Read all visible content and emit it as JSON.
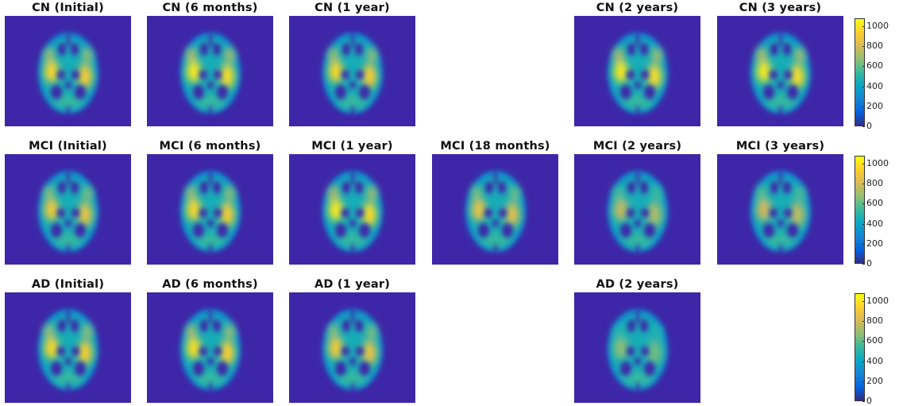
{
  "rows": [
    {
      "group": "CN",
      "panels": [
        {
          "title": "CN (Initial)",
          "intensity": 0.9
        },
        {
          "title": "CN (6 months)",
          "intensity": 0.95
        },
        {
          "title": "CN (1 year)",
          "intensity": 0.9
        },
        {
          "title": "",
          "empty": true
        },
        {
          "title": "CN (2 years)",
          "intensity": 0.95
        },
        {
          "title": "CN (3 years)",
          "intensity": 0.95
        }
      ]
    },
    {
      "group": "MCI",
      "panels": [
        {
          "title": "MCI (Initial)",
          "intensity": 0.85
        },
        {
          "title": "MCI (6 months)",
          "intensity": 0.9
        },
        {
          "title": "MCI (1 year)",
          "intensity": 0.95
        },
        {
          "title": "MCI (18 months)",
          "intensity": 0.82
        },
        {
          "title": "MCI (2 years)",
          "intensity": 0.72
        },
        {
          "title": "MCI (3 years)",
          "intensity": 0.75
        }
      ]
    },
    {
      "group": "AD",
      "panels": [
        {
          "title": "AD (Initial)",
          "intensity": 0.9
        },
        {
          "title": "AD (6 months)",
          "intensity": 0.92
        },
        {
          "title": "AD (1 year)",
          "intensity": 0.85
        },
        {
          "title": "",
          "empty": true
        },
        {
          "title": "AD (2 years)",
          "intensity": 0.62
        },
        {
          "title": "",
          "empty": true
        }
      ]
    }
  ],
  "colorbar": {
    "ticks": [
      "0",
      "200",
      "400",
      "600",
      "800",
      "1000"
    ],
    "colormap": [
      "#352a87",
      "#0363e1",
      "#1485d4",
      "#06a7c6",
      "#38b99e",
      "#92bf73",
      "#d9ba56",
      "#fcce2e",
      "#f9fb0e"
    ],
    "max_value": 1080
  },
  "colors": {
    "background": "#3e26a8"
  }
}
